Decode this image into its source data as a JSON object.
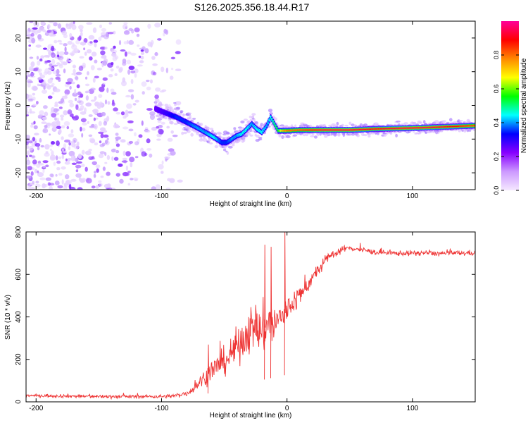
{
  "figure_title": "S126.2025.356.18.44.R17",
  "colors": {
    "axis": "#000000",
    "snr_line": "#ee3333",
    "background": "#ffffff",
    "colormap": [
      "#f5e8ff",
      "#cc99ff",
      "#8800ff",
      "#0000ff",
      "#00ffff",
      "#00ff00",
      "#ffff00",
      "#ff8800",
      "#ff0000",
      "#ff0099"
    ]
  },
  "chart_data": [
    {
      "type": "heatmap",
      "title": "",
      "xlabel": "Height of straight line (km)",
      "ylabel": "Frequency (Hz)",
      "xlim": [
        -208,
        150
      ],
      "ylim": [
        -25,
        25
      ],
      "xticks": [
        -200,
        -100,
        0,
        100
      ],
      "xtick_labels": [
        "-200",
        "-100",
        "0",
        "100"
      ],
      "yticks": [
        -20,
        -10,
        0,
        10,
        20
      ],
      "ytick_labels": [
        "-20",
        "-10",
        "0",
        "10",
        "20"
      ],
      "noise_region_x": [
        -208,
        -85
      ],
      "ridge": {
        "x": [
          -105,
          -95,
          -88,
          -80,
          -72,
          -65,
          -58,
          -52,
          -48,
          -44,
          -40,
          -36,
          -32,
          -28,
          -24,
          -20,
          -16,
          -13,
          -10,
          -7,
          -3,
          0,
          10,
          30,
          50,
          70,
          90,
          110,
          130,
          150
        ],
        "freq": [
          -1,
          -2.5,
          -3.5,
          -5,
          -6.5,
          -8,
          -9.5,
          -11,
          -11,
          -10,
          -9,
          -8.5,
          -7,
          -5.5,
          -7,
          -8,
          -6,
          -3.5,
          -5.5,
          -7.5,
          -7.5,
          -7.5,
          -7.3,
          -7.3,
          -7.3,
          -7.0,
          -6.8,
          -6.6,
          -6.3,
          -6.0
        ],
        "amplitude": [
          0.25,
          0.3,
          0.35,
          0.35,
          0.4,
          0.4,
          0.45,
          0.35,
          0.35,
          0.4,
          0.4,
          0.45,
          0.45,
          0.4,
          0.45,
          0.45,
          0.4,
          0.45,
          0.5,
          0.55,
          0.75,
          0.8,
          0.85,
          0.95,
          0.95,
          0.9,
          0.95,
          0.95,
          0.9,
          0.85
        ]
      },
      "colorbar": {
        "label": "Normalized spectral amplitude",
        "range": [
          0,
          1
        ],
        "ticks": [
          0.0,
          0.2,
          0.4,
          0.6,
          0.8
        ],
        "tick_labels": [
          "0.0",
          "0.2",
          "0.4",
          "0.6",
          "0.8"
        ]
      }
    },
    {
      "type": "line",
      "title": "",
      "xlabel": "Height of straight line (km)",
      "ylabel": "SNR (10 * v/v)",
      "xlim": [
        -208,
        150
      ],
      "ylim": [
        0,
        800
      ],
      "xticks": [
        -200,
        -100,
        0,
        100
      ],
      "xtick_labels": [
        "-200",
        "-100",
        "0",
        "100"
      ],
      "yticks": [
        0,
        200,
        400,
        600,
        800
      ],
      "ytick_labels": [
        "0",
        "200",
        "400",
        "600",
        "800"
      ],
      "series": [
        {
          "name": "SNR",
          "x": [
            -208,
            -180,
            -150,
            -120,
            -100,
            -90,
            -80,
            -75,
            -70,
            -65,
            -60,
            -55,
            -50,
            -45,
            -40,
            -35,
            -30,
            -25,
            -20,
            -15,
            -10,
            -5,
            0,
            5,
            10,
            15,
            20,
            25,
            30,
            35,
            40,
            45,
            50,
            60,
            70,
            80,
            90,
            100,
            110,
            120,
            130,
            140,
            150
          ],
          "y": [
            30,
            28,
            25,
            25,
            25,
            28,
            40,
            60,
            90,
            120,
            150,
            170,
            190,
            220,
            260,
            300,
            340,
            350,
            330,
            380,
            360,
            400,
            430,
            470,
            500,
            540,
            580,
            620,
            660,
            690,
            705,
            720,
            725,
            715,
            705,
            700,
            700,
            700,
            702,
            698,
            700,
            700,
            702
          ],
          "noise_amplitude": [
            10,
            10,
            10,
            10,
            10,
            12,
            15,
            25,
            35,
            50,
            60,
            70,
            80,
            90,
            100,
            120,
            130,
            140,
            150,
            140,
            120,
            100,
            80,
            70,
            60,
            50,
            40,
            35,
            30,
            25,
            20,
            18,
            15,
            15,
            15,
            15,
            15,
            15,
            15,
            15,
            15,
            15,
            15
          ]
        }
      ],
      "spikes": {
        "x": [
          -63,
          -18,
          -13,
          -2
        ],
        "y": [
          270,
          740,
          730,
          800
        ]
      }
    }
  ]
}
